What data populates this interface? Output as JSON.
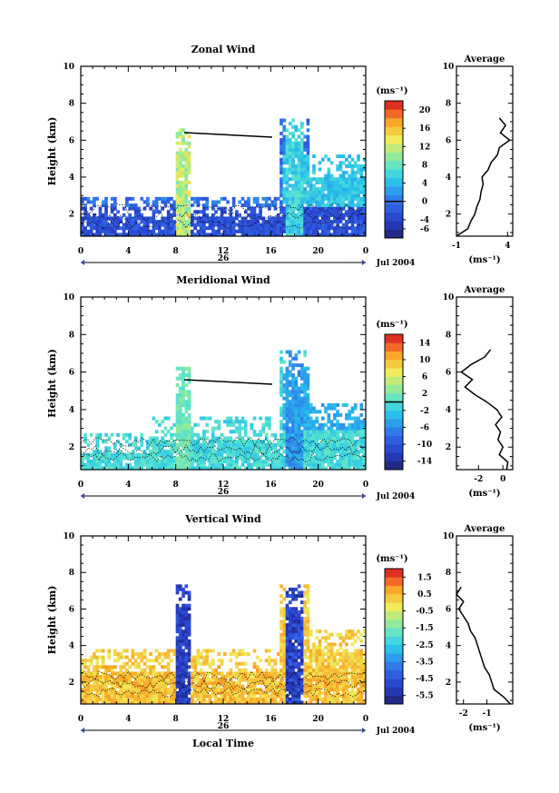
{
  "common": {
    "date_label": "Jul 2004",
    "day_label": "26",
    "unit_label": "(ms⁻¹)",
    "avg_unit_label": "(ms⁻¹)",
    "avg_title": "Average",
    "ylabel": "Height (km)",
    "xlabel": "Local Time",
    "x_ticks": [
      "0",
      "4",
      "8",
      "12",
      "16",
      "20",
      "0"
    ],
    "y_ticks": [
      "2",
      "4",
      "6",
      "8",
      "10"
    ]
  },
  "chart_data": [
    {
      "type": "heatmap",
      "title": "Zonal Wind",
      "ylabel": "Height (km)",
      "xlim": [
        0,
        24
      ],
      "ylim": [
        0.8,
        10
      ],
      "colorbar_ticks": [
        "-6",
        "-4",
        "0",
        "4",
        "8",
        "12",
        "16",
        "20"
      ],
      "colorbar_range": [
        -8,
        22
      ],
      "average": {
        "title": "Average",
        "xlim": [
          -1,
          4.5
        ],
        "x_ticks": [
          "-1",
          "4"
        ],
        "heights": [
          0.8,
          1.2,
          1.6,
          2.0,
          2.4,
          2.8,
          3.2,
          3.6,
          4.0,
          4.4,
          4.8,
          5.2,
          5.6,
          6.0,
          6.4,
          6.8,
          7.2
        ],
        "values": [
          -1.0,
          0.1,
          0.4,
          0.8,
          1.0,
          1.3,
          1.4,
          1.6,
          1.5,
          2.1,
          2.4,
          3.0,
          3.2,
          4.2,
          3.3,
          3.8,
          3.2
        ]
      }
    },
    {
      "type": "heatmap",
      "title": "Meridional Wind",
      "ylabel": "Height (km)",
      "xlim": [
        0,
        24
      ],
      "ylim": [
        0.8,
        10
      ],
      "colorbar_ticks": [
        "-14",
        "-10",
        "-6",
        "-2",
        "2",
        "6",
        "10",
        "14"
      ],
      "colorbar_range": [
        -16,
        16
      ],
      "average": {
        "title": "Average",
        "xlim": [
          -3.8,
          0.8
        ],
        "x_ticks": [
          "-2",
          "0"
        ],
        "heights": [
          0.8,
          1.2,
          1.6,
          2.0,
          2.4,
          2.8,
          3.2,
          3.6,
          4.0,
          4.4,
          4.8,
          5.2,
          5.6,
          6.0,
          6.4,
          6.8,
          7.2
        ],
        "values": [
          0.3,
          0.4,
          -0.3,
          0.0,
          -0.4,
          -0.2,
          -0.6,
          -0.1,
          -0.5,
          -1.3,
          -2.3,
          -3.1,
          -2.5,
          -3.4,
          -2.6,
          -1.5,
          -1.0
        ]
      }
    },
    {
      "type": "heatmap",
      "title": "Vertical Wind",
      "ylabel": "Height (km)",
      "xlabel": "Local Time",
      "xlim": [
        0,
        24
      ],
      "ylim": [
        0.8,
        10
      ],
      "colorbar_ticks": [
        "-5.5",
        "-4.5",
        "-3.5",
        "-2.5",
        "-1.5",
        "-0.5",
        "0.5",
        "1.5"
      ],
      "colorbar_range": [
        -6,
        2
      ],
      "average": {
        "title": "Average",
        "xlim": [
          -2.3,
          0.1
        ],
        "x_ticks": [
          "-2",
          "-1"
        ],
        "heights": [
          0.8,
          1.2,
          1.6,
          2.0,
          2.4,
          2.8,
          3.2,
          3.6,
          4.0,
          4.4,
          4.8,
          5.2,
          5.6,
          6.0,
          6.4,
          6.8,
          7.2
        ],
        "values": [
          0.0,
          -0.3,
          -0.7,
          -0.8,
          -0.9,
          -1.1,
          -1.2,
          -1.3,
          -1.4,
          -1.5,
          -1.7,
          -1.8,
          -2.0,
          -2.2,
          -2.0,
          -2.3,
          -2.1
        ]
      }
    }
  ]
}
